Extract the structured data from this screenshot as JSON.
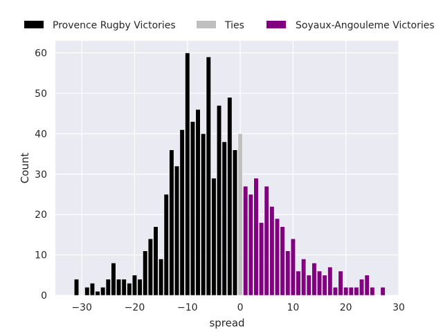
{
  "chart_data": {
    "type": "bar",
    "title": "",
    "xlabel": "spread",
    "ylabel": "Count",
    "xlim": [
      -35,
      30
    ],
    "ylim": [
      0,
      63
    ],
    "x_ticks": [
      -30,
      -20,
      -10,
      0,
      10,
      20,
      30
    ],
    "x_tick_labels": [
      "−30",
      "−20",
      "−10",
      "0",
      "10",
      "20",
      "30"
    ],
    "y_ticks": [
      0,
      10,
      20,
      30,
      40,
      50,
      60
    ],
    "y_tick_labels": [
      "0",
      "10",
      "20",
      "30",
      "40",
      "50",
      "60"
    ],
    "grid": true,
    "legend_position": "top",
    "background_color": "#EAEAF2",
    "grid_color": "#FFFFFF",
    "bar_width": 0.85,
    "series": [
      {
        "name": "Provence Rugby Victories",
        "color": "#000000",
        "x": [
          -31,
          -29,
          -28,
          -27,
          -26,
          -25,
          -24,
          -23,
          -22,
          -21,
          -20,
          -19,
          -18,
          -17,
          -16,
          -15,
          -14,
          -13,
          -12,
          -11,
          -10,
          -9,
          -8,
          -7,
          -6,
          -5,
          -4,
          -3,
          -2,
          -1
        ],
        "values": [
          4,
          2,
          3,
          1,
          2,
          4,
          8,
          4,
          4,
          3,
          5,
          4,
          11,
          14,
          17,
          9,
          25,
          36,
          32,
          41,
          60,
          43,
          46,
          40,
          59,
          29,
          47,
          38,
          49,
          36
        ]
      },
      {
        "name": "Ties",
        "color": "#BFBFBF",
        "x": [
          0
        ],
        "values": [
          40
        ]
      },
      {
        "name": "Soyaux-Angouleme Victories",
        "color": "#800080",
        "x": [
          1,
          2,
          3,
          4,
          5,
          6,
          7,
          8,
          9,
          10,
          11,
          12,
          13,
          14,
          15,
          16,
          17,
          18,
          19,
          20,
          21,
          22,
          23,
          24,
          25,
          26,
          27
        ],
        "values": [
          27,
          25,
          29,
          18,
          27,
          22,
          19,
          17,
          11,
          14,
          6,
          9,
          5,
          8,
          6,
          5,
          7,
          2,
          6,
          2,
          2,
          2,
          4,
          5,
          2,
          0,
          2
        ]
      }
    ]
  }
}
